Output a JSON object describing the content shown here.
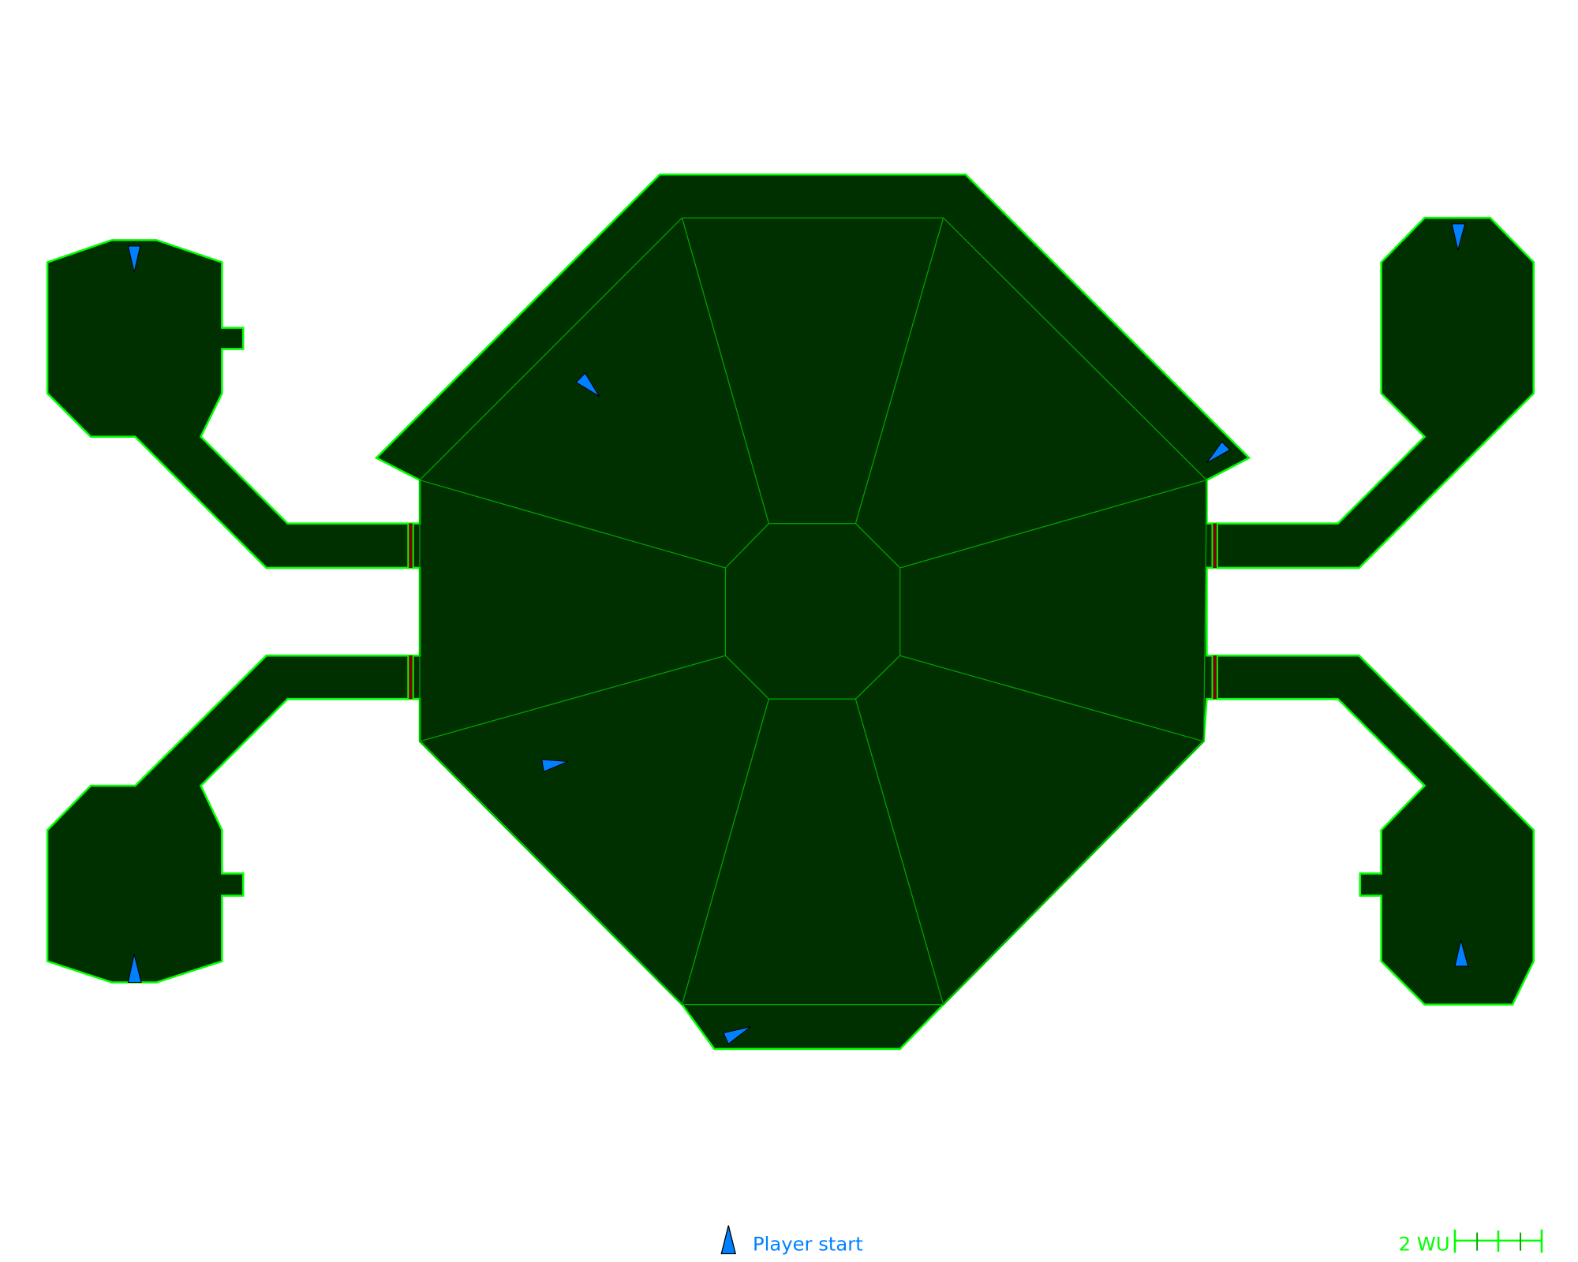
{
  "map": {
    "colors": {
      "floor": "#003000",
      "wall": "#00ff00",
      "inner_line": "#00a000",
      "door": "#800000",
      "player_start": "#0080ff"
    },
    "player_start_count": 8
  },
  "legend": {
    "player_start_label": "Player start",
    "player_start_icon": "player-start-icon"
  },
  "scale_bar": {
    "label": "2 WU"
  }
}
